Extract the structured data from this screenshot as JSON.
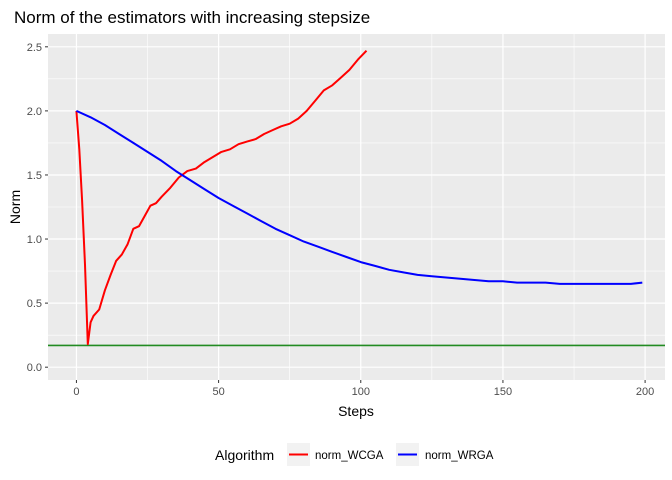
{
  "chart_data": {
    "type": "line",
    "title": "Norm of the estimators with increasing stepsize",
    "xlabel": "Steps",
    "ylabel": "Norm",
    "xlim": [
      -10,
      207
    ],
    "ylim": [
      -0.1,
      2.6
    ],
    "x_ticks": [
      0,
      50,
      100,
      150,
      200
    ],
    "y_ticks": [
      0.0,
      0.5,
      1.0,
      1.5,
      2.0,
      2.5
    ],
    "x_tick_labels": [
      "0",
      "50",
      "100",
      "150",
      "200"
    ],
    "y_tick_labels": [
      "0.0",
      "0.5",
      "1.0",
      "1.5",
      "2.0",
      "2.5"
    ],
    "grid": true,
    "legend": {
      "title": "Algorithm",
      "position": "bottom"
    },
    "hline": {
      "y": 0.17,
      "color": "#228b22"
    },
    "series": [
      {
        "name": "norm_WCGA",
        "color": "#ff0000",
        "x": [
          0,
          1,
          2,
          3,
          4,
          5,
          6,
          8,
          10,
          12,
          14,
          16,
          18,
          20,
          22,
          24,
          26,
          28,
          30,
          33,
          36,
          39,
          42,
          45,
          48,
          51,
          54,
          57,
          60,
          63,
          66,
          69,
          72,
          75,
          78,
          81,
          84,
          87,
          90,
          93,
          96,
          99,
          102
        ],
        "values": [
          2.0,
          1.7,
          1.3,
          0.8,
          0.18,
          0.35,
          0.4,
          0.45,
          0.6,
          0.72,
          0.83,
          0.88,
          0.96,
          1.08,
          1.1,
          1.18,
          1.26,
          1.28,
          1.33,
          1.4,
          1.48,
          1.53,
          1.55,
          1.6,
          1.64,
          1.68,
          1.7,
          1.74,
          1.76,
          1.78,
          1.82,
          1.85,
          1.88,
          1.9,
          1.94,
          2.0,
          2.08,
          2.16,
          2.2,
          2.26,
          2.32,
          2.4,
          2.47
        ]
      },
      {
        "name": "norm_WRGA",
        "color": "#0000ff",
        "x": [
          0,
          5,
          10,
          15,
          20,
          25,
          30,
          35,
          40,
          45,
          50,
          55,
          60,
          65,
          70,
          75,
          80,
          85,
          90,
          95,
          100,
          105,
          110,
          115,
          120,
          125,
          130,
          135,
          140,
          145,
          150,
          155,
          160,
          165,
          170,
          175,
          180,
          185,
          190,
          195,
          199
        ],
        "values": [
          2.0,
          1.95,
          1.89,
          1.82,
          1.75,
          1.68,
          1.61,
          1.53,
          1.46,
          1.39,
          1.32,
          1.26,
          1.2,
          1.14,
          1.08,
          1.03,
          0.98,
          0.94,
          0.9,
          0.86,
          0.82,
          0.79,
          0.76,
          0.74,
          0.72,
          0.71,
          0.7,
          0.69,
          0.68,
          0.67,
          0.67,
          0.66,
          0.66,
          0.66,
          0.65,
          0.65,
          0.65,
          0.65,
          0.65,
          0.65,
          0.66
        ]
      }
    ]
  }
}
